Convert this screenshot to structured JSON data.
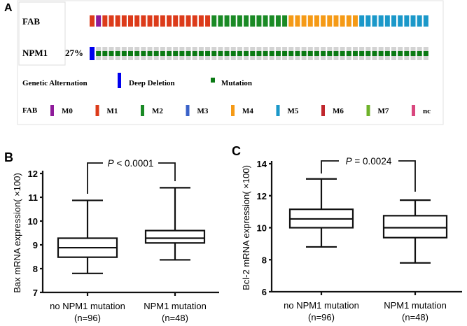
{
  "chart_data": [
    {
      "type": "heatmap",
      "panel_label": "A",
      "rows": [
        {
          "label": "FAB",
          "percent": "",
          "cells": [
            {
              "category": "M1",
              "count": 1
            },
            {
              "category": "M0",
              "count": 1
            },
            {
              "category": "M1",
              "count": 17
            },
            {
              "category": "M2",
              "count": 12
            },
            {
              "category": "M4",
              "count": 11
            },
            {
              "category": "M5",
              "count": 11
            }
          ]
        },
        {
          "label": "NPM1",
          "percent": "27%",
          "cells": [
            {
              "category": "Deep Deletion",
              "count": 1
            },
            {
              "category": "Mutation",
              "count": 52
            }
          ]
        }
      ],
      "legend_alteration": {
        "title": "Genetic Alternation",
        "items": [
          {
            "label": "Deep Deletion",
            "color": "#0000ee"
          },
          {
            "label": "Mutation",
            "color": "#0b7a14"
          }
        ]
      },
      "legend_fab": {
        "title": "FAB",
        "items": [
          {
            "label": "M0",
            "color": "#8e1a9a"
          },
          {
            "label": "M1",
            "color": "#dc3b1a"
          },
          {
            "label": "M2",
            "color": "#1a8a25"
          },
          {
            "label": "M3",
            "color": "#3a62c8"
          },
          {
            "label": "M4",
            "color": "#f59a16"
          },
          {
            "label": "M5",
            "color": "#1b98c9"
          },
          {
            "label": "M6",
            "color": "#c0272d"
          },
          {
            "label": "M7",
            "color": "#6eb22a"
          },
          {
            "label": "nc",
            "color": "#d9477e"
          }
        ]
      },
      "background_cell_color": "#d3d3d3"
    },
    {
      "type": "box",
      "panel_label": "B",
      "ylabel": "Bax mRNA expression( ×100)",
      "ylim": [
        7,
        12
      ],
      "yticks": [
        "7",
        "8",
        "9",
        "10",
        "11",
        "12"
      ],
      "categories": [
        {
          "name": "no NPM1 mutation",
          "n": "(n=96)",
          "min": 7.8,
          "q1": 8.48,
          "median": 8.88,
          "q3": 9.28,
          "max": 10.87
        },
        {
          "name": "NPM1 mutation",
          "n": "(n=48)",
          "min": 8.37,
          "q1": 9.08,
          "median": 9.28,
          "q3": 9.6,
          "max": 11.4
        }
      ],
      "annotation": {
        "p_symbol": "P",
        "p_text": " < 0.0001"
      }
    },
    {
      "type": "box",
      "panel_label": "C",
      "ylabel": "Bcl-2 mRNA expression( ×100)",
      "ylim": [
        6,
        14
      ],
      "yticks": [
        "6",
        "8",
        "10",
        "12",
        "14"
      ],
      "categories": [
        {
          "name": "no NPM1 mutation",
          "n": "(n=96)",
          "min": 8.8,
          "q1": 10.0,
          "median": 10.55,
          "q3": 11.15,
          "max": 13.05
        },
        {
          "name": "NPM1 mutation",
          "n": "(n=48)",
          "min": 7.8,
          "q1": 9.38,
          "median": 10.0,
          "q3": 10.75,
          "max": 11.72
        }
      ],
      "annotation": {
        "p_symbol": "P",
        "p_text": " = 0.0024"
      }
    }
  ]
}
